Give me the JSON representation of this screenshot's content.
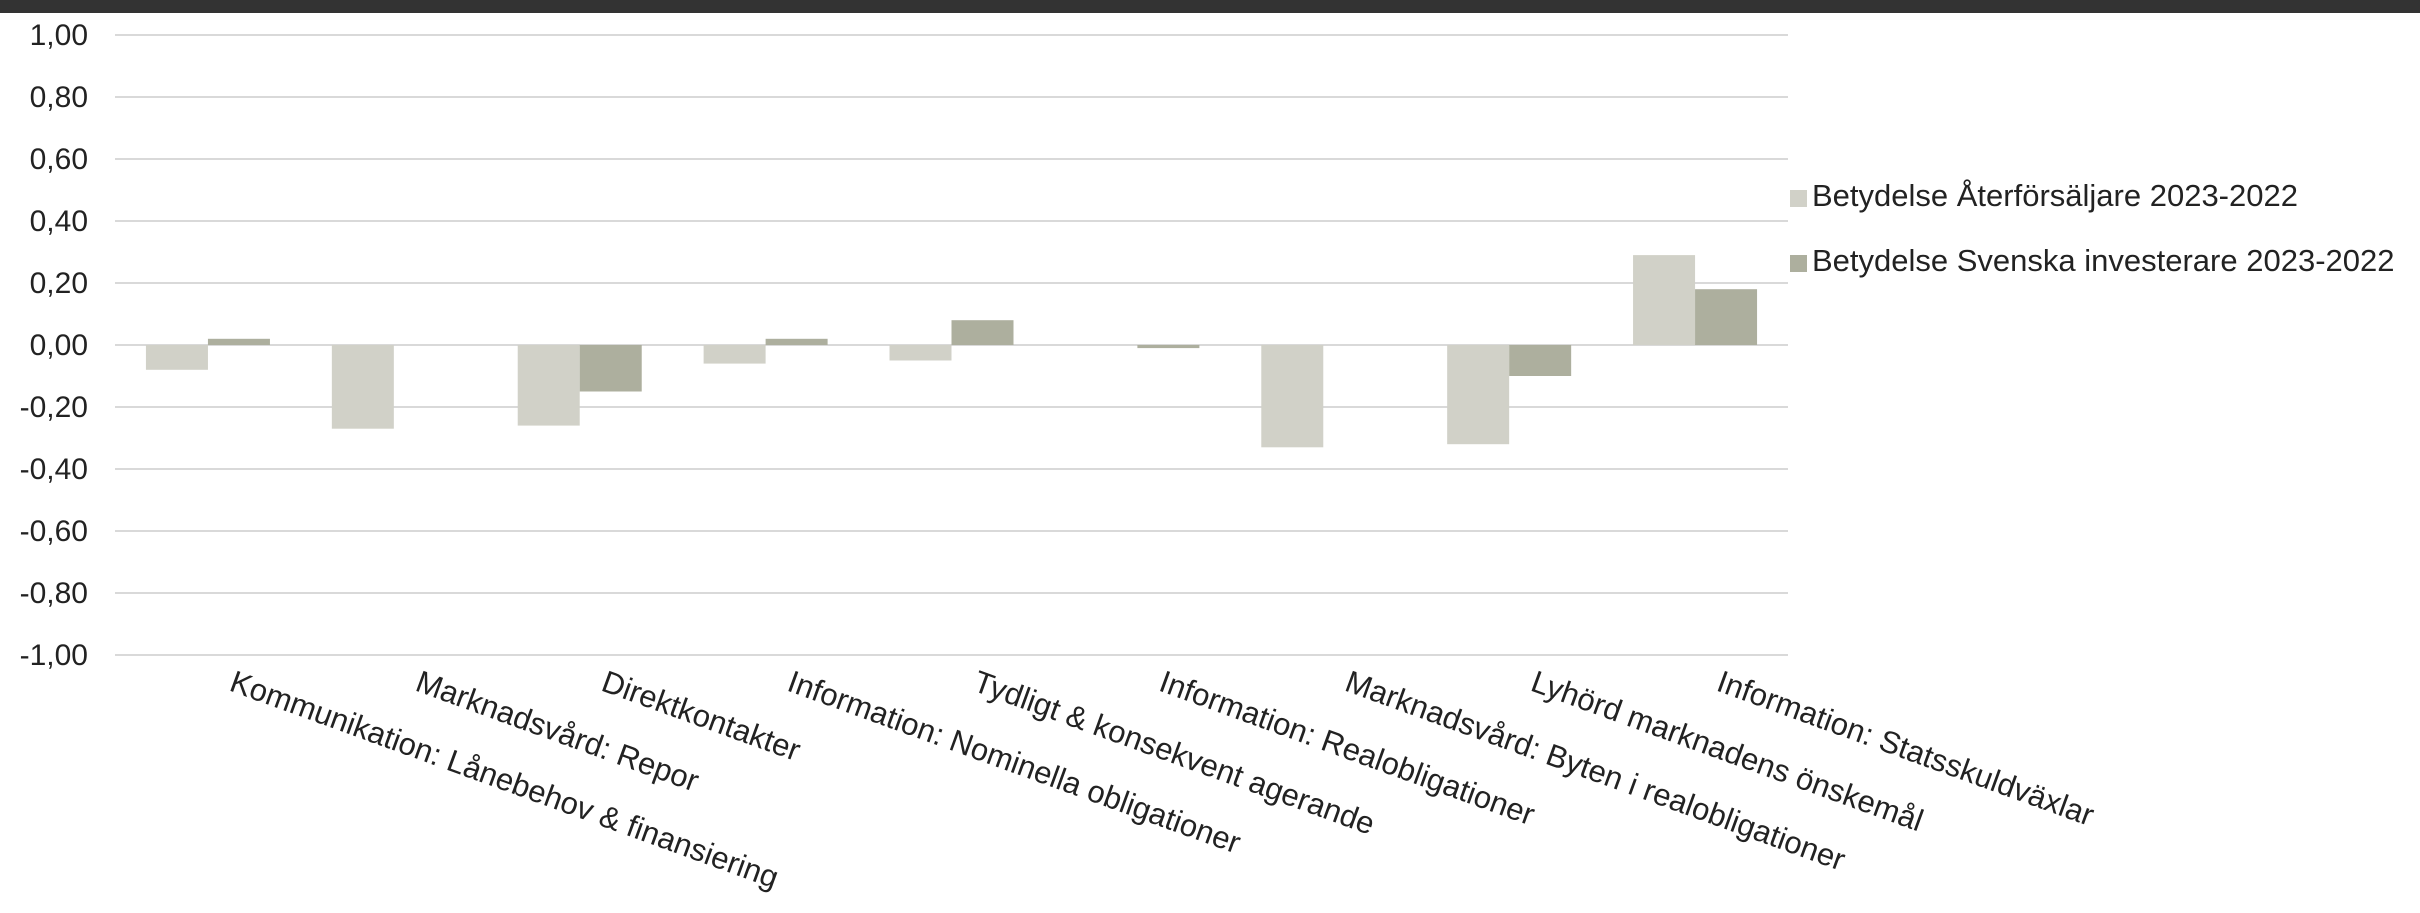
{
  "chart_data": {
    "type": "bar",
    "categories": [
      "Kommunikation: Lånebehov & finansiering",
      "Marknadsvård: Repor",
      "Direktkontakter",
      "Information: Nominella obligationer",
      "Tydligt & konsekvent agerande",
      "Information: Realobligationer",
      "Marknadsvård: Byten i realobligationer",
      "Lyhörd marknadens önskemål",
      "Information: Statsskuldväxlar"
    ],
    "series": [
      {
        "name": "Betydelse Återförsäljare 2023-2022",
        "color": "#d1d1c8",
        "values": [
          -0.08,
          -0.27,
          -0.26,
          -0.06,
          -0.05,
          0.0,
          -0.33,
          -0.32,
          0.29
        ]
      },
      {
        "name": "Betydelse Svenska investerare 2023-2022",
        "color": "#adaf9e",
        "values": [
          0.02,
          0.0,
          -0.15,
          0.02,
          0.08,
          -0.01,
          0.0,
          -0.1,
          0.18
        ]
      }
    ],
    "ylim": [
      -1.0,
      1.0
    ],
    "yticks": [
      1.0,
      0.8,
      0.6,
      0.4,
      0.2,
      0.0,
      -0.2,
      -0.4,
      -0.6,
      -0.8,
      -1.0
    ],
    "ytick_labels": [
      "1,00",
      "0,80",
      "0,60",
      "0,40",
      "0,20",
      "0,00",
      "-0,20",
      "-0,40",
      "-0,60",
      "-0,80",
      "-1,00"
    ],
    "grid": true,
    "legend_position": "right",
    "title": "",
    "xlabel": "",
    "ylabel": ""
  }
}
